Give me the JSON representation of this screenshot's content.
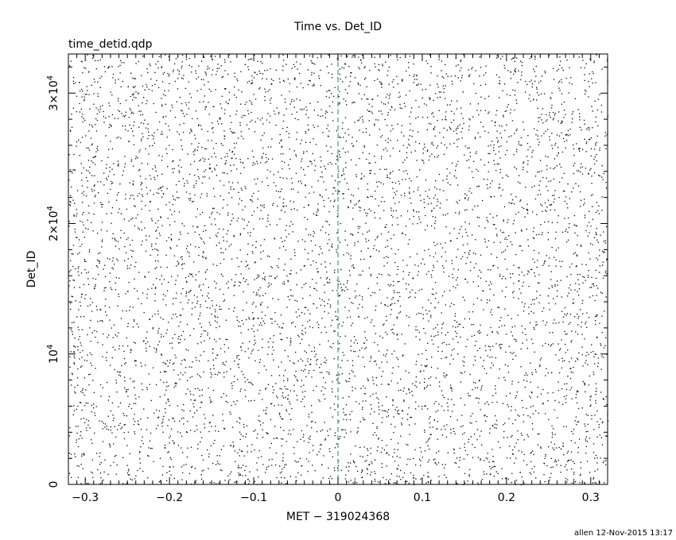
{
  "chart_data": {
    "type": "scatter",
    "title": "Time vs. Det_ID",
    "file_label": "time_detid.qdp",
    "xlabel": "MET − 319024368",
    "ylabel": "Det_ID",
    "xlim": [
      -0.32,
      0.32
    ],
    "ylim": [
      0,
      33000
    ],
    "x_ticks": [
      {
        "value": -0.3,
        "label": "−0.3"
      },
      {
        "value": -0.2,
        "label": "−0.2"
      },
      {
        "value": -0.1,
        "label": "−0.1"
      },
      {
        "value": 0,
        "label": "0"
      },
      {
        "value": 0.1,
        "label": "0.1"
      },
      {
        "value": 0.2,
        "label": "0.2"
      },
      {
        "value": 0.3,
        "label": "0.3"
      }
    ],
    "y_ticks": [
      {
        "value": 0,
        "label": "0",
        "base": "0",
        "exp": ""
      },
      {
        "value": 10000,
        "label": "10^4",
        "base": "10",
        "exp": "4"
      },
      {
        "value": 20000,
        "label": "2×10^4",
        "base": "2×10",
        "exp": "4"
      },
      {
        "value": 30000,
        "label": "3×10^4",
        "base": "3×10",
        "exp": "4"
      }
    ],
    "reference_line": {
      "x": 0,
      "style": "dashed",
      "color": "#3a9a9a"
    },
    "points": {
      "description_count": 6000,
      "distribution": "uniform",
      "x_range": [
        -0.32,
        0.32
      ],
      "y_range": [
        0,
        33000
      ]
    },
    "grid": false,
    "legend": "none"
  },
  "footer": "allen 12-Nov-2015 13:17",
  "colors": {
    "marks": "#000000",
    "reference": "#3a9a9a",
    "background": "#ffffff"
  }
}
